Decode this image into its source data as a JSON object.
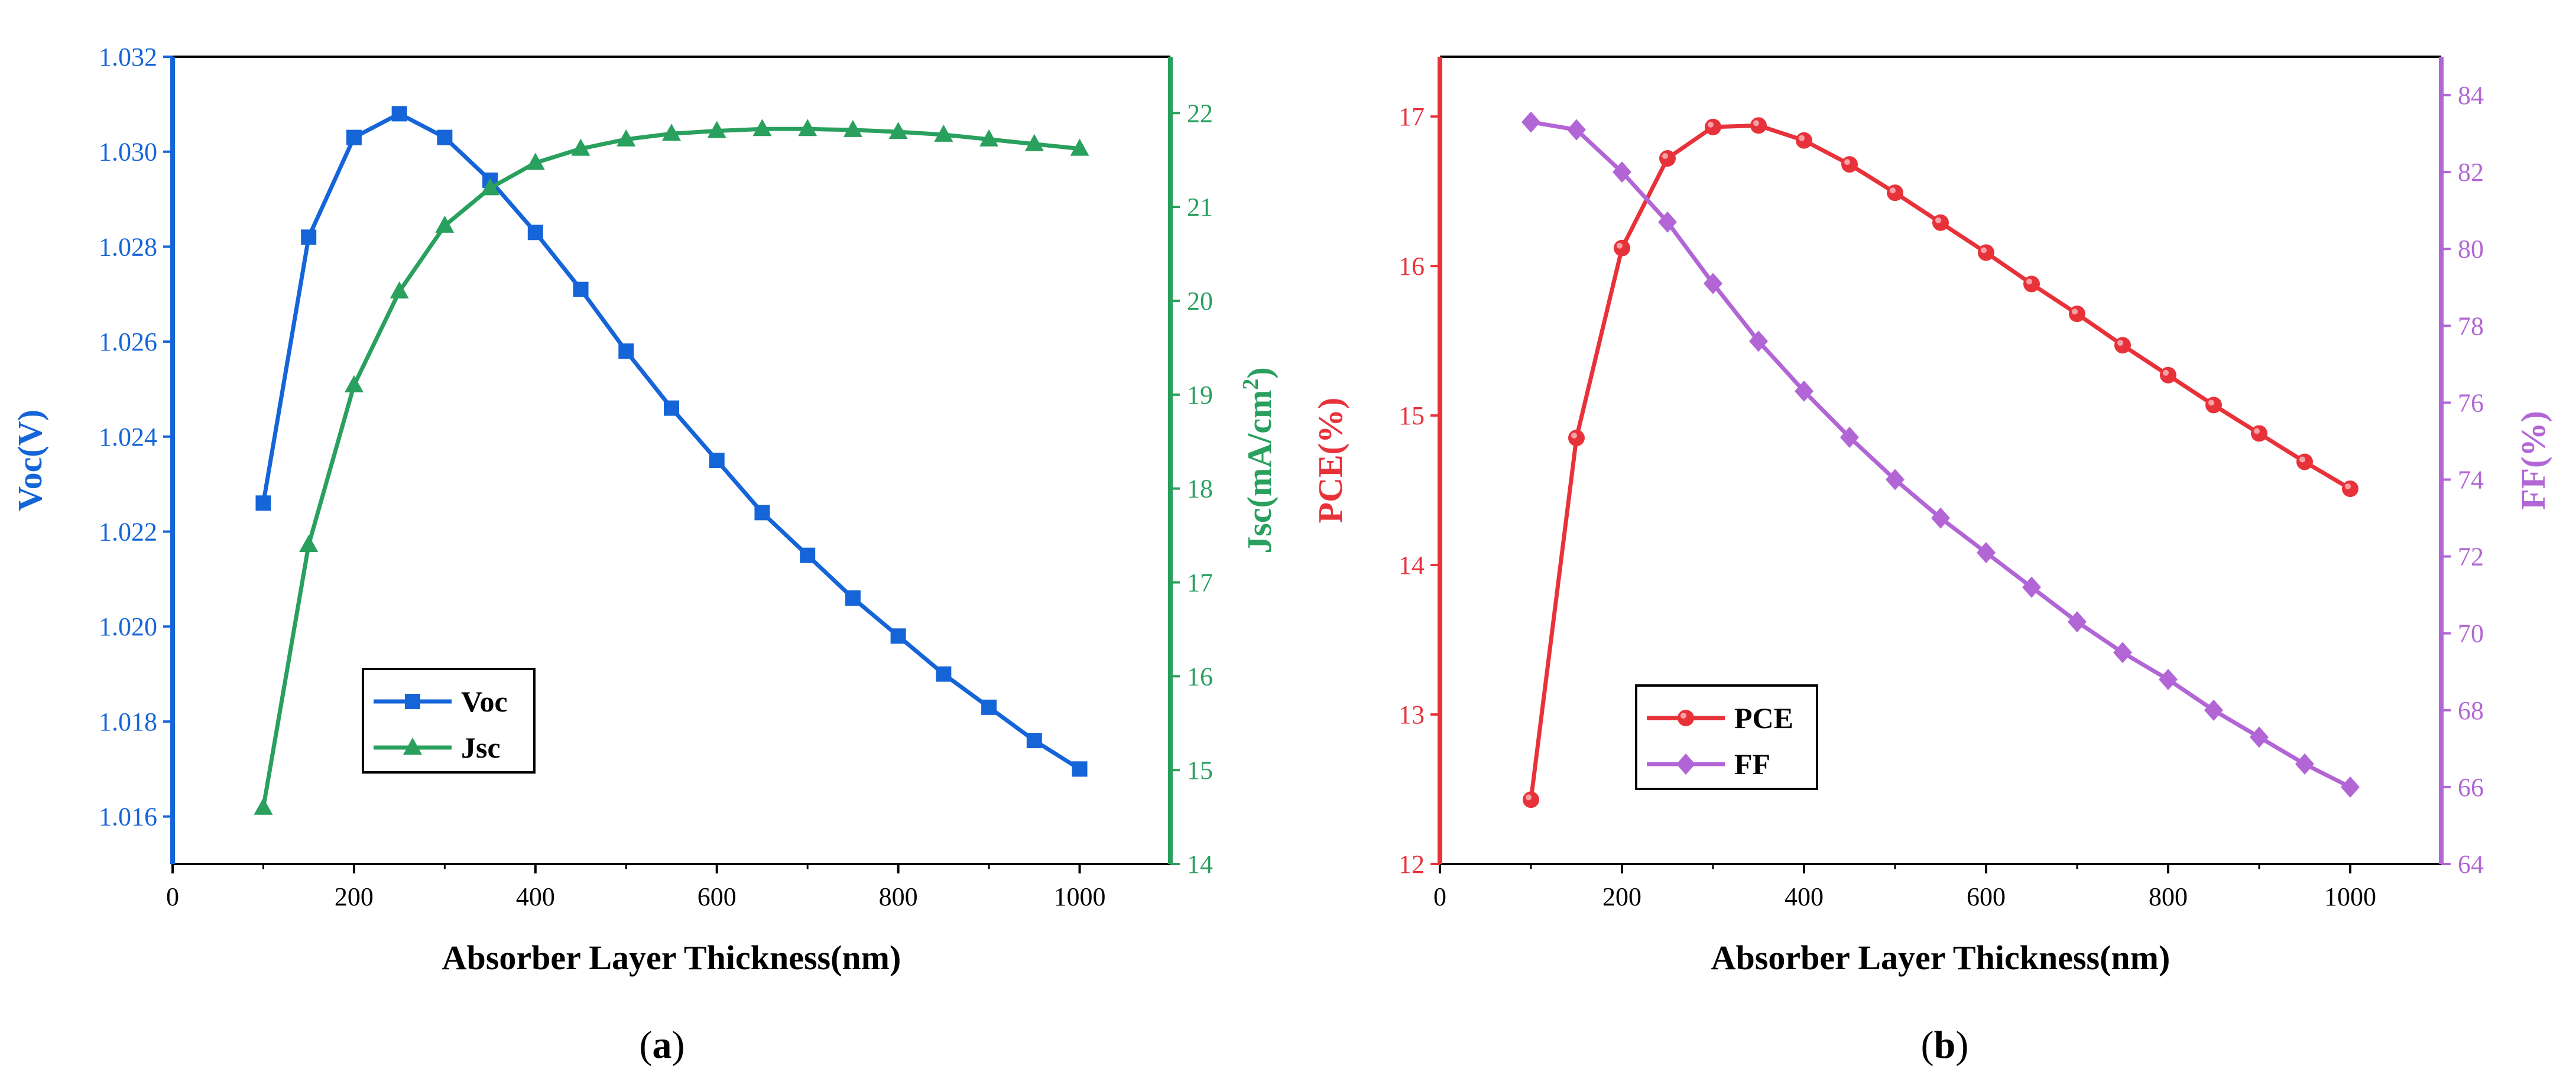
{
  "chart_data": [
    {
      "id": "a",
      "type": "line",
      "caption": "(a)",
      "xlabel": "Absorber Layer Thickness(nm)",
      "xlim": [
        0,
        1100
      ],
      "xticks": [
        0,
        200,
        400,
        600,
        800,
        1000
      ],
      "ylabel_left": "Voc(V)",
      "ylim_left": [
        1.015,
        1.032
      ],
      "yticks_left": [
        1.016,
        1.018,
        1.02,
        1.022,
        1.024,
        1.026,
        1.028,
        1.03,
        1.032
      ],
      "ylabel_right": "Jsc(mA/cm",
      "ylabel_right_sup": "2",
      "ylabel_right_close": ")",
      "ylim_right": [
        14,
        22.6
      ],
      "yticks_right": [
        14,
        15,
        16,
        17,
        18,
        19,
        20,
        21,
        22
      ],
      "legend_position": "bottom-left",
      "colors": {
        "left": "#1565d8",
        "right": "#2aa05e"
      },
      "x": [
        100,
        150,
        200,
        250,
        300,
        350,
        400,
        450,
        500,
        550,
        600,
        650,
        700,
        750,
        800,
        850,
        900,
        950,
        1000
      ],
      "series": [
        {
          "name": "Voc",
          "axis": "left",
          "marker": "square",
          "color": "#1565d8",
          "values": [
            1.0226,
            1.0282,
            1.0303,
            1.0308,
            1.0303,
            1.0294,
            1.0283,
            1.0271,
            1.0258,
            1.0246,
            1.0235,
            1.0224,
            1.0215,
            1.0206,
            1.0198,
            1.019,
            1.0183,
            1.0176,
            1.017
          ]
        },
        {
          "name": "Jsc",
          "axis": "right",
          "marker": "triangle",
          "color": "#2aa05e",
          "values": [
            14.6,
            17.4,
            19.1,
            20.1,
            20.8,
            21.2,
            21.47,
            21.62,
            21.72,
            21.78,
            21.81,
            21.83,
            21.83,
            21.82,
            21.8,
            21.77,
            21.72,
            21.67,
            21.62
          ]
        }
      ]
    },
    {
      "id": "b",
      "type": "line",
      "caption": "(b)",
      "xlabel": "Absorber Layer Thickness(nm)",
      "xlim": [
        0,
        1100
      ],
      "xticks": [
        0,
        200,
        400,
        600,
        800,
        1000
      ],
      "ylabel_left": "PCE(%)",
      "ylim_left": [
        12,
        17.4
      ],
      "yticks_left": [
        12,
        13,
        14,
        15,
        16,
        17
      ],
      "ylabel_right": "FF(%)",
      "ylim_right": [
        64,
        85
      ],
      "yticks_right": [
        64,
        66,
        68,
        70,
        72,
        74,
        76,
        78,
        80,
        82,
        84
      ],
      "legend_position": "bottom-left",
      "colors": {
        "left": "#e8323a",
        "right": "#b266d6"
      },
      "x": [
        100,
        150,
        200,
        250,
        300,
        350,
        400,
        450,
        500,
        550,
        600,
        650,
        700,
        750,
        800,
        850,
        900,
        950,
        1000
      ],
      "series": [
        {
          "name": "PCE",
          "axis": "left",
          "marker": "circle",
          "color": "#e8323a",
          "values": [
            12.43,
            14.85,
            16.12,
            16.72,
            16.93,
            16.94,
            16.84,
            16.68,
            16.49,
            16.29,
            16.09,
            15.88,
            15.68,
            15.47,
            15.27,
            15.07,
            14.88,
            14.69,
            14.51
          ]
        },
        {
          "name": "FF",
          "axis": "right",
          "marker": "diamond",
          "color": "#b266d6",
          "values": [
            83.3,
            83.1,
            82.0,
            80.7,
            79.1,
            77.6,
            76.3,
            75.1,
            74.0,
            73.0,
            72.1,
            71.2,
            70.3,
            69.5,
            68.8,
            68.0,
            67.3,
            66.6,
            66.0
          ]
        }
      ]
    }
  ]
}
